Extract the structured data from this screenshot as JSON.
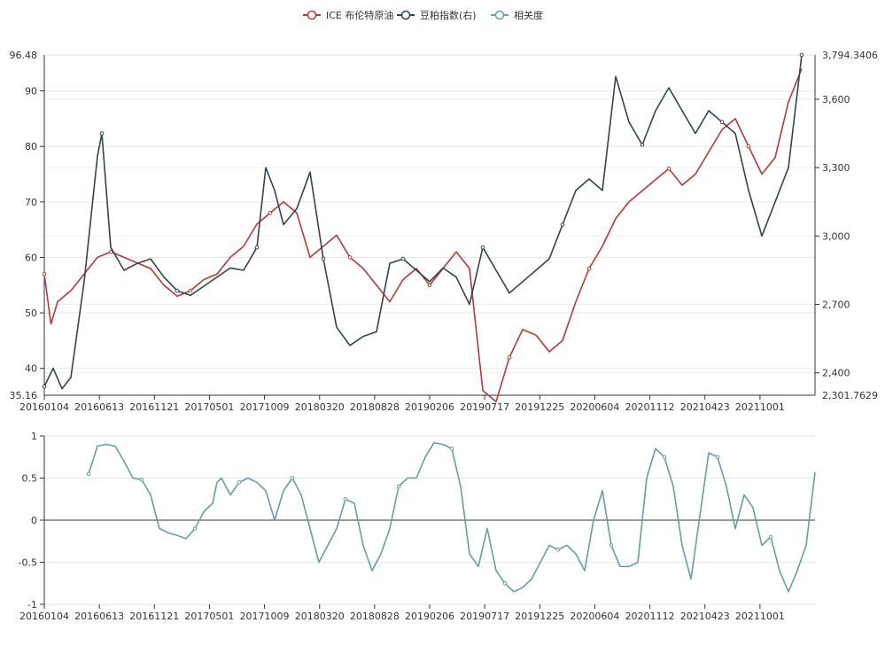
{
  "legend": {
    "items": [
      {
        "label": "ICE 布伦特原油",
        "color": "#c23531"
      },
      {
        "label": "豆粕指数(右)",
        "color": "#2f4554"
      },
      {
        "label": "相关度",
        "color": "#61a0a8"
      }
    ],
    "placement": "top-center"
  },
  "chart_data": [
    {
      "type": "line",
      "title": "",
      "grid": true,
      "x_tick_labels": [
        "20160104",
        "20160613",
        "20161121",
        "20170501",
        "20171009",
        "20180320",
        "20180828",
        "20190206",
        "20190717",
        "20191225",
        "20200604",
        "20201112",
        "20210423",
        "20211001"
      ],
      "y_left": {
        "min": 35.16,
        "max": 96.48,
        "tick_values": [
          40,
          50,
          60,
          70,
          80,
          90
        ],
        "min_label": "35.16",
        "max_label": "96.48"
      },
      "y_right": {
        "min": 2301.7629,
        "max": 3794.3406,
        "tick_values": [
          2400,
          2700,
          3000,
          3300,
          3600
        ],
        "tick_labels": [
          "2,400",
          "2,700",
          "3,000",
          "3,300",
          "3,600"
        ],
        "min_label": "2,301.7629",
        "max_label": "3,794.3406"
      },
      "series": [
        {
          "name": "ICE 布伦特原油",
          "axis": "left",
          "color": "#c23531",
          "points": [
            [
              0,
              57
            ],
            [
              3,
              48
            ],
            [
              6,
              52
            ],
            [
              12,
              54
            ],
            [
              18,
              57
            ],
            [
              24,
              60
            ],
            [
              30,
              61
            ],
            [
              36,
              60
            ],
            [
              42,
              59
            ],
            [
              48,
              58
            ],
            [
              54,
              55
            ],
            [
              60,
              53
            ],
            [
              66,
              54
            ],
            [
              72,
              56
            ],
            [
              78,
              57
            ],
            [
              84,
              60
            ],
            [
              90,
              62
            ],
            [
              96,
              66
            ],
            [
              102,
              68
            ],
            [
              108,
              70
            ],
            [
              114,
              68
            ],
            [
              120,
              60
            ],
            [
              126,
              62
            ],
            [
              132,
              64
            ],
            [
              138,
              60
            ],
            [
              144,
              58
            ],
            [
              150,
              55
            ],
            [
              156,
              52
            ],
            [
              162,
              56
            ],
            [
              168,
              58
            ],
            [
              174,
              55
            ],
            [
              180,
              58
            ],
            [
              186,
              61
            ],
            [
              192,
              58
            ],
            [
              198,
              36
            ],
            [
              204,
              34
            ],
            [
              210,
              42
            ],
            [
              216,
              47
            ],
            [
              222,
              46
            ],
            [
              228,
              43
            ],
            [
              234,
              45
            ],
            [
              240,
              52
            ],
            [
              246,
              58
            ],
            [
              252,
              62
            ],
            [
              258,
              67
            ],
            [
              264,
              70
            ],
            [
              270,
              72
            ],
            [
              276,
              74
            ],
            [
              282,
              76
            ],
            [
              288,
              73
            ],
            [
              294,
              75
            ],
            [
              300,
              79
            ],
            [
              306,
              83
            ],
            [
              312,
              85
            ],
            [
              318,
              80
            ],
            [
              324,
              75
            ],
            [
              330,
              78
            ],
            [
              336,
              88
            ],
            [
              342,
              94
            ]
          ]
        },
        {
          "name": "豆粕指数(右)",
          "axis": "right",
          "color": "#2f4554",
          "points": [
            [
              0,
              2340
            ],
            [
              4,
              2420
            ],
            [
              8,
              2330
            ],
            [
              12,
              2380
            ],
            [
              18,
              2800
            ],
            [
              24,
              3350
            ],
            [
              26,
              3450
            ],
            [
              30,
              2950
            ],
            [
              36,
              2850
            ],
            [
              42,
              2880
            ],
            [
              48,
              2900
            ],
            [
              54,
              2820
            ],
            [
              60,
              2760
            ],
            [
              66,
              2740
            ],
            [
              72,
              2780
            ],
            [
              78,
              2820
            ],
            [
              84,
              2860
            ],
            [
              90,
              2850
            ],
            [
              96,
              2950
            ],
            [
              100,
              3300
            ],
            [
              104,
              3200
            ],
            [
              108,
              3050
            ],
            [
              114,
              3120
            ],
            [
              120,
              3280
            ],
            [
              126,
              2900
            ],
            [
              132,
              2600
            ],
            [
              138,
              2520
            ],
            [
              144,
              2560
            ],
            [
              150,
              2580
            ],
            [
              156,
              2880
            ],
            [
              162,
              2900
            ],
            [
              168,
              2850
            ],
            [
              174,
              2800
            ],
            [
              180,
              2860
            ],
            [
              186,
              2820
            ],
            [
              192,
              2700
            ],
            [
              198,
              2950
            ],
            [
              204,
              2850
            ],
            [
              210,
              2750
            ],
            [
              216,
              2800
            ],
            [
              222,
              2850
            ],
            [
              228,
              2900
            ],
            [
              234,
              3050
            ],
            [
              240,
              3200
            ],
            [
              246,
              3250
            ],
            [
              252,
              3200
            ],
            [
              258,
              3700
            ],
            [
              264,
              3500
            ],
            [
              270,
              3400
            ],
            [
              276,
              3550
            ],
            [
              282,
              3650
            ],
            [
              288,
              3550
            ],
            [
              294,
              3450
            ],
            [
              300,
              3550
            ],
            [
              306,
              3500
            ],
            [
              312,
              3450
            ],
            [
              318,
              3200
            ],
            [
              324,
              3000
            ],
            [
              330,
              3150
            ],
            [
              336,
              3300
            ],
            [
              342,
              3794
            ]
          ]
        }
      ]
    },
    {
      "type": "line",
      "title": "",
      "grid": true,
      "x_tick_labels": [
        "20160104",
        "20160613",
        "20161121",
        "20170501",
        "20171009",
        "20180320",
        "20180828",
        "20190206",
        "20190717",
        "20191225",
        "20200604",
        "20201112",
        "20210423",
        "20211001"
      ],
      "y": {
        "min": -1,
        "max": 1,
        "tick_values": [
          -1,
          -0.5,
          0,
          0.5,
          1
        ],
        "tick_labels": [
          "-1",
          "-0.5",
          "0",
          "0.5",
          "1"
        ]
      },
      "series": [
        {
          "name": "相关度",
          "color": "#61a0a8",
          "points": [
            [
              20,
              0.55
            ],
            [
              24,
              0.88
            ],
            [
              28,
              0.9
            ],
            [
              32,
              0.88
            ],
            [
              36,
              0.7
            ],
            [
              40,
              0.5
            ],
            [
              44,
              0.48
            ],
            [
              48,
              0.3
            ],
            [
              52,
              -0.1
            ],
            [
              56,
              -0.15
            ],
            [
              60,
              -0.18
            ],
            [
              64,
              -0.22
            ],
            [
              68,
              -0.1
            ],
            [
              72,
              0.1
            ],
            [
              76,
              0.2
            ],
            [
              78,
              0.45
            ],
            [
              80,
              0.5
            ],
            [
              84,
              0.3
            ],
            [
              88,
              0.45
            ],
            [
              92,
              0.5
            ],
            [
              96,
              0.45
            ],
            [
              100,
              0.35
            ],
            [
              104,
              0.0
            ],
            [
              108,
              0.35
            ],
            [
              112,
              0.5
            ],
            [
              116,
              0.3
            ],
            [
              120,
              -0.1
            ],
            [
              124,
              -0.5
            ],
            [
              128,
              -0.3
            ],
            [
              132,
              -0.1
            ],
            [
              136,
              0.25
            ],
            [
              140,
              0.2
            ],
            [
              144,
              -0.3
            ],
            [
              148,
              -0.6
            ],
            [
              152,
              -0.4
            ],
            [
              156,
              -0.1
            ],
            [
              160,
              0.4
            ],
            [
              164,
              0.5
            ],
            [
              168,
              0.5
            ],
            [
              172,
              0.75
            ],
            [
              176,
              0.92
            ],
            [
              180,
              0.9
            ],
            [
              184,
              0.85
            ],
            [
              188,
              0.4
            ],
            [
              192,
              -0.4
            ],
            [
              196,
              -0.55
            ],
            [
              200,
              -0.1
            ],
            [
              204,
              -0.6
            ],
            [
              208,
              -0.75
            ],
            [
              212,
              -0.85
            ],
            [
              216,
              -0.8
            ],
            [
              220,
              -0.7
            ],
            [
              224,
              -0.5
            ],
            [
              228,
              -0.3
            ],
            [
              232,
              -0.35
            ],
            [
              236,
              -0.3
            ],
            [
              240,
              -0.4
            ],
            [
              244,
              -0.6
            ],
            [
              248,
              0.0
            ],
            [
              252,
              0.35
            ],
            [
              256,
              -0.3
            ],
            [
              260,
              -0.55
            ],
            [
              264,
              -0.55
            ],
            [
              268,
              -0.5
            ],
            [
              272,
              0.5
            ],
            [
              276,
              0.85
            ],
            [
              280,
              0.75
            ],
            [
              284,
              0.4
            ],
            [
              288,
              -0.3
            ],
            [
              292,
              -0.7
            ],
            [
              296,
              0.05
            ],
            [
              300,
              0.8
            ],
            [
              304,
              0.75
            ],
            [
              308,
              0.4
            ],
            [
              312,
              -0.1
            ],
            [
              316,
              0.3
            ],
            [
              320,
              0.15
            ],
            [
              324,
              -0.3
            ],
            [
              328,
              -0.2
            ],
            [
              332,
              -0.6
            ],
            [
              336,
              -0.85
            ],
            [
              340,
              -0.6
            ],
            [
              344,
              -0.3
            ],
            [
              348,
              0.57
            ]
          ]
        }
      ]
    }
  ]
}
